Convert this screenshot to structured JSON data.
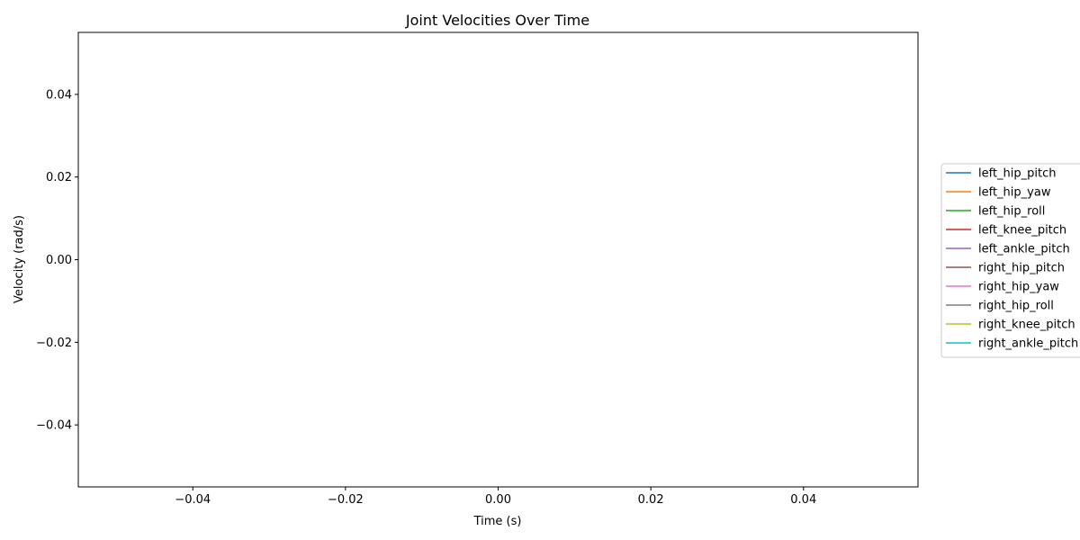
{
  "chart_data": {
    "type": "line",
    "title": "Joint Velocities Over Time",
    "xlabel": "Time (s)",
    "ylabel": "Velocity (rad/s)",
    "xlim": [
      -0.055,
      0.055
    ],
    "ylim": [
      -0.055,
      0.055
    ],
    "x_ticks": [
      -0.04,
      -0.02,
      0.0,
      0.02,
      0.04
    ],
    "x_tick_labels": [
      "−0.04",
      "−0.02",
      "0.00",
      "0.02",
      "0.04"
    ],
    "y_ticks": [
      -0.04,
      -0.02,
      0.0,
      0.02,
      0.04
    ],
    "y_tick_labels": [
      "−0.04",
      "−0.02",
      "0.00",
      "0.02",
      "0.04"
    ],
    "grid": false,
    "legend_position": "outside-right",
    "x": [],
    "series": [
      {
        "name": "left_hip_pitch",
        "color": "#1f77b4",
        "values": []
      },
      {
        "name": "left_hip_yaw",
        "color": "#ff7f0e",
        "values": []
      },
      {
        "name": "left_hip_roll",
        "color": "#2ca02c",
        "values": []
      },
      {
        "name": "left_knee_pitch",
        "color": "#d62728",
        "values": []
      },
      {
        "name": "left_ankle_pitch",
        "color": "#9467bd",
        "values": []
      },
      {
        "name": "right_hip_pitch",
        "color": "#8c564b",
        "values": []
      },
      {
        "name": "right_hip_yaw",
        "color": "#e377c2",
        "values": []
      },
      {
        "name": "right_hip_roll",
        "color": "#7f7f7f",
        "values": []
      },
      {
        "name": "right_knee_pitch",
        "color": "#bcbd22",
        "values": []
      },
      {
        "name": "right_ankle_pitch",
        "color": "#17becf",
        "values": []
      }
    ]
  }
}
